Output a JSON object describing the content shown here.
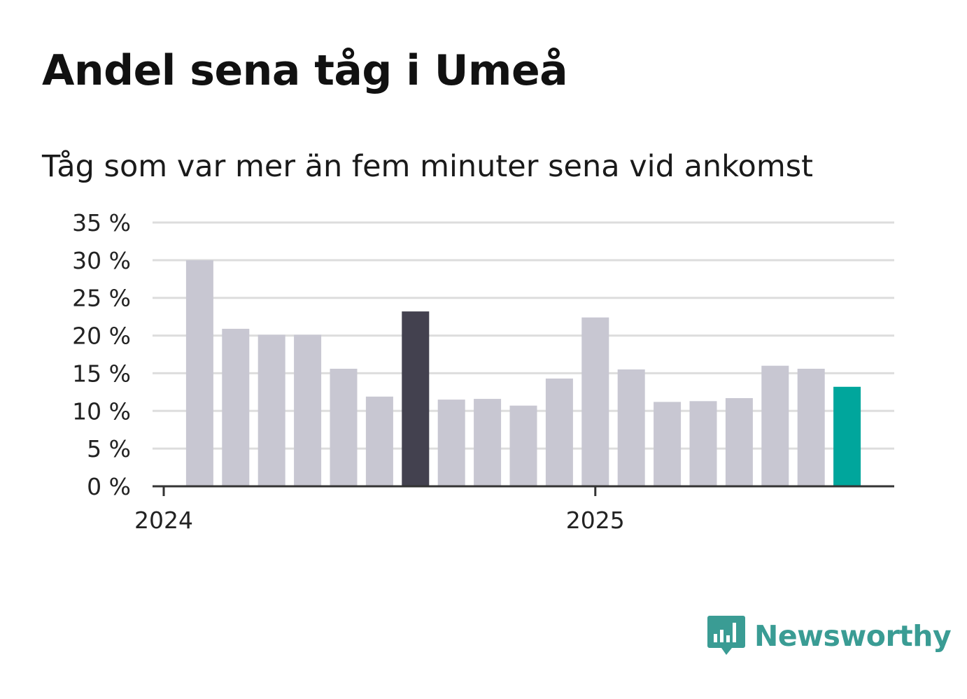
{
  "title": "Andel sena tåg i Umeå",
  "subtitle": "Tåg som var mer än fem minuter sena vid ankomst",
  "brand": {
    "name": "Newsworthy",
    "icon": "bar-chart-speech-bubble-icon",
    "color": "#3a9c94"
  },
  "colors": {
    "default": "#c8c7d2",
    "highlight": "#43414f",
    "latest": "#00a69c",
    "grid": "#dddddd",
    "axis": "#333333"
  },
  "chart_data": {
    "type": "bar",
    "title": "Andel sena tåg i Umeå",
    "subtitle": "Tåg som var mer än fem minuter sena vid ankomst",
    "xlabel": "",
    "ylabel": "",
    "ylim": [
      0,
      35
    ],
    "yticks": [
      0,
      5,
      10,
      15,
      20,
      25,
      30,
      35
    ],
    "ytick_labels": [
      "0 %",
      "5 %",
      "10 %",
      "15 %",
      "20 %",
      "25 %",
      "30 %",
      "35 %"
    ],
    "xtick_labels": [
      "2024",
      "2025"
    ],
    "xtick_categories": [
      "2024-01",
      "2025-01"
    ],
    "grid": true,
    "categories": [
      "2024-02",
      "2024-03",
      "2024-04",
      "2024-05",
      "2024-06",
      "2024-07",
      "2024-08",
      "2024-09",
      "2024-10",
      "2024-11",
      "2024-12",
      "2025-01",
      "2025-02",
      "2025-03",
      "2025-04",
      "2025-05",
      "2025-06",
      "2025-07",
      "2025-08"
    ],
    "values": [
      30.0,
      20.9,
      20.1,
      20.1,
      15.6,
      11.9,
      23.2,
      11.5,
      11.6,
      10.7,
      14.3,
      22.4,
      15.5,
      11.2,
      11.3,
      11.7,
      16.0,
      15.6,
      13.2
    ],
    "bar_colors": [
      "default",
      "default",
      "default",
      "default",
      "default",
      "default",
      "highlight",
      "default",
      "default",
      "default",
      "default",
      "default",
      "default",
      "default",
      "default",
      "default",
      "default",
      "default",
      "latest"
    ]
  }
}
